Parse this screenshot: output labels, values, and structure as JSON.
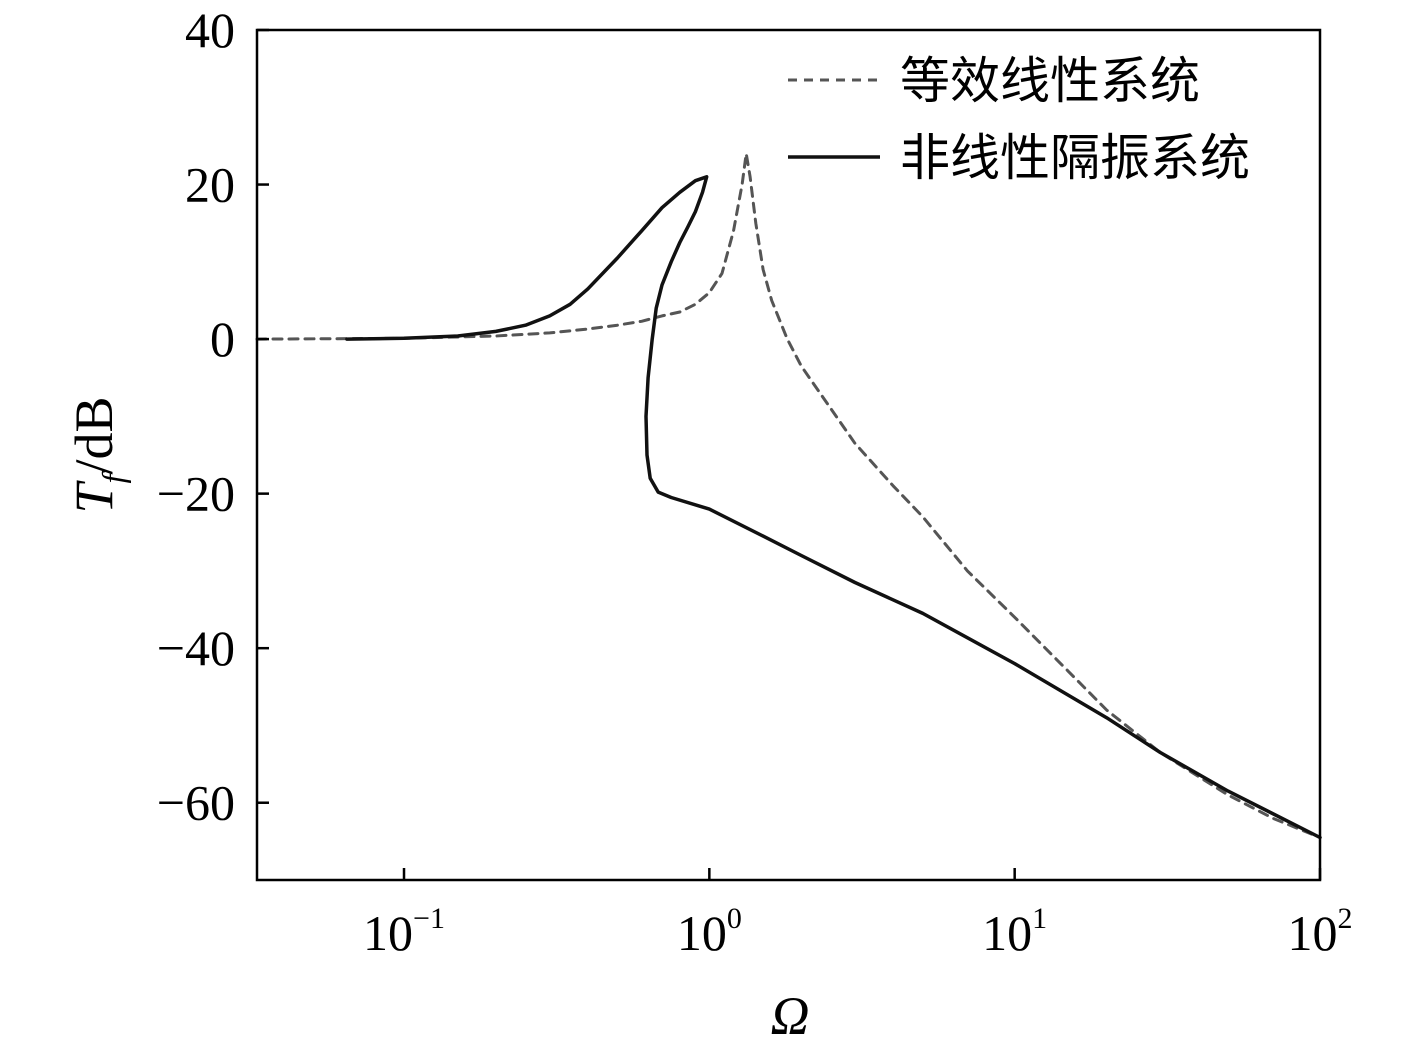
{
  "chart_data": {
    "type": "line",
    "xscale": "log",
    "xlim": [
      0.033,
      100
    ],
    "ylim": [
      -70,
      40
    ],
    "xlabel": "Ω",
    "ylabel": {
      "base": "T",
      "sub": "f",
      "suffix": "/dB"
    },
    "yticks": [
      40,
      20,
      0,
      -20,
      -40,
      -60
    ],
    "ytick_labels": [
      "40",
      "20",
      "0",
      "−20",
      "−40",
      "−60"
    ],
    "xticks": [
      {
        "value": 0.1,
        "base": "10",
        "exp": "−1"
      },
      {
        "value": 1,
        "base": "10",
        "exp": "0"
      },
      {
        "value": 10,
        "base": "10",
        "exp": "1"
      },
      {
        "value": 100,
        "base": "10",
        "exp": "2"
      }
    ],
    "grid": false,
    "legend_position": "top-right",
    "series": [
      {
        "name": "等效线性系统",
        "style": "dashed",
        "color": "#555555",
        "points": [
          [
            0.033,
            0.0
          ],
          [
            0.06,
            0.05
          ],
          [
            0.1,
            0.1
          ],
          [
            0.2,
            0.4
          ],
          [
            0.3,
            0.8
          ],
          [
            0.4,
            1.3
          ],
          [
            0.5,
            1.8
          ],
          [
            0.6,
            2.3
          ],
          [
            0.7,
            3.0
          ],
          [
            0.8,
            3.5
          ],
          [
            0.9,
            4.5
          ],
          [
            1.0,
            6.0
          ],
          [
            1.1,
            8.5
          ],
          [
            1.2,
            14.0
          ],
          [
            1.28,
            20.0
          ],
          [
            1.32,
            24.0
          ],
          [
            1.36,
            21.0
          ],
          [
            1.42,
            15.0
          ],
          [
            1.5,
            9.0
          ],
          [
            1.6,
            5.0
          ],
          [
            1.8,
            0.0
          ],
          [
            2.0,
            -3.5
          ],
          [
            2.5,
            -9.0
          ],
          [
            3.0,
            -13.5
          ],
          [
            4.0,
            -19.0
          ],
          [
            5.0,
            -23.0
          ],
          [
            7.0,
            -30.0
          ],
          [
            10.0,
            -36.0
          ],
          [
            15.0,
            -43.0
          ],
          [
            20.0,
            -48.0
          ],
          [
            30.0,
            -53.5
          ],
          [
            50.0,
            -59.0
          ],
          [
            70.0,
            -62.0
          ],
          [
            100.0,
            -64.5
          ]
        ]
      },
      {
        "name": "非线性隔振系统",
        "style": "solid",
        "color": "#111111",
        "points": [
          [
            0.065,
            0.0
          ],
          [
            0.1,
            0.1
          ],
          [
            0.15,
            0.4
          ],
          [
            0.2,
            1.0
          ],
          [
            0.25,
            1.8
          ],
          [
            0.3,
            3.0
          ],
          [
            0.35,
            4.5
          ],
          [
            0.4,
            6.5
          ],
          [
            0.5,
            10.5
          ],
          [
            0.6,
            14.0
          ],
          [
            0.7,
            17.0
          ],
          [
            0.8,
            19.0
          ],
          [
            0.9,
            20.5
          ],
          [
            0.98,
            21.0
          ],
          [
            0.95,
            19.0
          ],
          [
            0.9,
            16.5
          ],
          [
            0.85,
            14.5
          ],
          [
            0.8,
            12.5
          ],
          [
            0.75,
            10.0
          ],
          [
            0.7,
            7.0
          ],
          [
            0.67,
            4.0
          ],
          [
            0.65,
            0.0
          ],
          [
            0.63,
            -5.0
          ],
          [
            0.62,
            -10.0
          ],
          [
            0.625,
            -15.0
          ],
          [
            0.64,
            -18.0
          ],
          [
            0.68,
            -19.8
          ],
          [
            0.75,
            -20.5
          ],
          [
            1.0,
            -22.0
          ],
          [
            1.5,
            -25.5
          ],
          [
            2.0,
            -28.0
          ],
          [
            3.0,
            -31.5
          ],
          [
            5.0,
            -35.5
          ],
          [
            10.0,
            -42.0
          ],
          [
            20.0,
            -49.0
          ],
          [
            30.0,
            -53.5
          ],
          [
            50.0,
            -58.5
          ],
          [
            100.0,
            -64.5
          ]
        ]
      }
    ]
  }
}
